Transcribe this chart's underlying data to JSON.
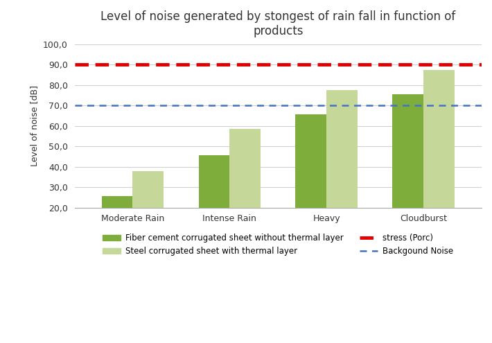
{
  "title": "Level of noise generated by stongest of rain fall in function of\nproducts",
  "xlabel": "",
  "ylabel": "Level of noise [dB]",
  "categories": [
    "Moderate Rain",
    "Intense Rain",
    "Heavy",
    "Cloudburst"
  ],
  "series1_label": "Fiber cement corrugated sheet without thermal layer",
  "series2_label": "Steel corrugated sheet with thermal layer",
  "series1_values": [
    25.5,
    45.5,
    65.5,
    75.5
  ],
  "series2_values": [
    38.0,
    58.5,
    77.5,
    87.5
  ],
  "series1_color": "#7fad3c",
  "series2_color": "#c5d89a",
  "stress_value": 90.0,
  "stress_color": "#e00000",
  "stress_label": "stress (Porc)",
  "background_noise_value": 70.0,
  "background_noise_color": "#4472c4",
  "background_noise_label": "Backgound Noise",
  "ylim_min": 20.0,
  "ylim_max": 100.0,
  "yticks": [
    20.0,
    30.0,
    40.0,
    50.0,
    60.0,
    70.0,
    80.0,
    90.0,
    100.0
  ],
  "bar_width": 0.32,
  "background_color": "#ffffff",
  "title_fontsize": 12,
  "axis_fontsize": 9,
  "tick_fontsize": 9,
  "legend_fontsize": 8.5
}
